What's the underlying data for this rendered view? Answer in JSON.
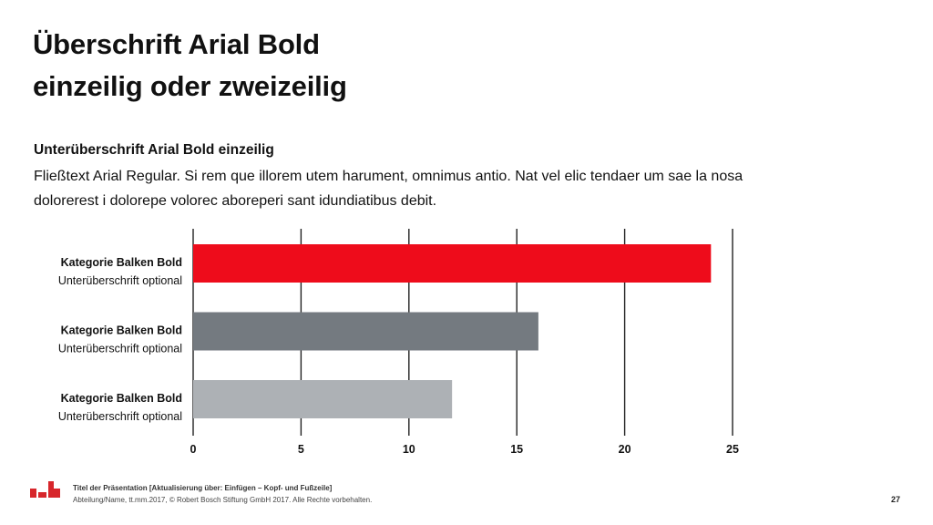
{
  "slide": {
    "title_line1": "Überschrift Arial Bold",
    "title_line2": "einzeilig oder zweizeilig",
    "subtitle": "Unterüberschrift Arial Bold einzeilig",
    "body_text": "Fließtext Arial Regular. Si rem que illorem utem harument, omnimus antio. Nat vel elic tendaer um sae la nosa dolorerest i dolorepe volorec aboreperi sant idundiatibus debit."
  },
  "chart_data": {
    "type": "bar",
    "orientation": "horizontal",
    "categories": [
      {
        "label": "Kategorie Balken Bold",
        "sublabel": "Unterüberschrift optional"
      },
      {
        "label": "Kategorie Balken Bold",
        "sublabel": "Unterüberschrift optional"
      },
      {
        "label": "Kategorie Balken Bold",
        "sublabel": "Unterüberschrift optional"
      }
    ],
    "values": [
      24,
      16,
      12
    ],
    "colors": [
      "#ee0c1b",
      "#747a80",
      "#adb1b5"
    ],
    "xlim": [
      0,
      25
    ],
    "xticks": [
      0,
      5,
      10,
      15,
      20,
      25
    ],
    "grid": true
  },
  "footer": {
    "title": "Titel der Präsentation [Aktualisierung über: Einfügen – Kopf- und Fußzeile]",
    "meta": "Abteilung/Name, tt.mm.2017, © Robert Bosch Stiftung GmbH 2017. Alle Rechte vorbehalten.",
    "page_number": "27",
    "logo_color": "#d7262b"
  }
}
